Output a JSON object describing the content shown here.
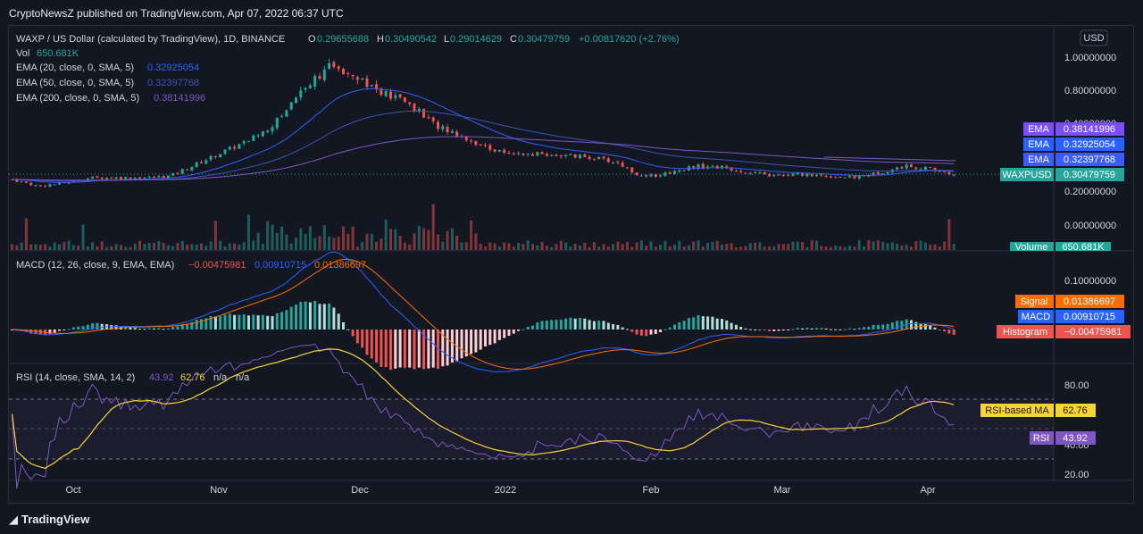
{
  "header": {
    "published": "CryptoNewsZ published on TradingView.com, Apr 07, 2022 06:37 UTC"
  },
  "footer": {
    "logo_text": "TradingView"
  },
  "colors": {
    "background": "#131722",
    "up": "#26a69a",
    "down": "#ef5350",
    "ema20": "#2962ff",
    "ema50": "#3f51b5",
    "ema200": "#7e57c2",
    "macd": "#2962ff",
    "signal": "#ff6d00",
    "rsi": "#7e57c2",
    "rsi_ma": "#f7d336"
  },
  "chart_data": {
    "type": "candlestick",
    "symbol_line": "WAXP / US Dollar (calculated by TradingView), 1D, BINANCE",
    "ohlc": {
      "o_label": "O",
      "o": "0.29655688",
      "h_label": "H",
      "h": "0.30490542",
      "l_label": "L",
      "l": "0.29014629",
      "c_label": "C",
      "c": "0.30479759",
      "change": "+0.00817620 (+2.76%)"
    },
    "vol_line": {
      "label": "Vol",
      "value": "650.681K"
    },
    "ema_lines": [
      {
        "label": "EMA (20, close, 0, SMA, 5)",
        "value": "0.32925054"
      },
      {
        "label": "EMA (50, close, 0, SMA, 5)",
        "value": "0.32397768"
      },
      {
        "label": "EMA (200, close, 0, SMA, 5)",
        "value": "0.38141996"
      }
    ],
    "currency": "USD",
    "x_ticks": [
      "Oct",
      "Nov",
      "Dec",
      "2022",
      "Feb",
      "Mar",
      "Apr"
    ],
    "price_axis": [
      "1.00000000",
      "0.80000000",
      "0.40000000",
      "0.20000000",
      "0.00000000"
    ],
    "price_tags": [
      {
        "name": "EMA",
        "value": "0.38141996"
      },
      {
        "name": "EMA",
        "value": "0.32925054"
      },
      {
        "name": "EMA",
        "value": "0.32397768"
      },
      {
        "name": "WAXPUSD",
        "value": "0.30479759"
      },
      {
        "name": "Volume",
        "value": "650.681K"
      }
    ],
    "price_series": [
      {
        "x": "Sep 17",
        "y": 0.29
      },
      {
        "x": "Sep 24",
        "y": 0.25
      },
      {
        "x": "Oct 01",
        "y": 0.27
      },
      {
        "x": "Oct 08",
        "y": 0.3
      },
      {
        "x": "Oct 15",
        "y": 0.3
      },
      {
        "x": "Oct 22",
        "y": 0.3
      },
      {
        "x": "Oct 29",
        "y": 0.31
      },
      {
        "x": "Nov 03",
        "y": 0.38
      },
      {
        "x": "Nov 08",
        "y": 0.45
      },
      {
        "x": "Nov 13",
        "y": 0.52
      },
      {
        "x": "Nov 17",
        "y": 0.62
      },
      {
        "x": "Nov 20",
        "y": 0.82
      },
      {
        "x": "Nov 23",
        "y": 0.95
      },
      {
        "x": "Nov 26",
        "y": 0.92
      },
      {
        "x": "Nov 29",
        "y": 0.8
      },
      {
        "x": "Dec 02",
        "y": 0.75
      },
      {
        "x": "Dec 05",
        "y": 0.62
      },
      {
        "x": "Dec 09",
        "y": 0.55
      },
      {
        "x": "Dec 13",
        "y": 0.48
      },
      {
        "x": "Dec 20",
        "y": 0.43
      },
      {
        "x": "Dec 27",
        "y": 0.44
      },
      {
        "x": "Jan 01",
        "y": 0.43
      },
      {
        "x": "Jan 08",
        "y": 0.42
      },
      {
        "x": "Jan 15",
        "y": 0.39
      },
      {
        "x": "Jan 22",
        "y": 0.3
      },
      {
        "x": "Jan 29",
        "y": 0.33
      },
      {
        "x": "Feb 05",
        "y": 0.37
      },
      {
        "x": "Feb 12",
        "y": 0.36
      },
      {
        "x": "Feb 19",
        "y": 0.33
      },
      {
        "x": "Feb 26",
        "y": 0.31
      },
      {
        "x": "Mar 05",
        "y": 0.32
      },
      {
        "x": "Mar 12",
        "y": 0.31
      },
      {
        "x": "Mar 19",
        "y": 0.3
      },
      {
        "x": "Mar 26",
        "y": 0.33
      },
      {
        "x": "Apr 01",
        "y": 0.37
      },
      {
        "x": "Apr 04",
        "y": 0.35
      },
      {
        "x": "Apr 07",
        "y": 0.305
      }
    ],
    "macd": {
      "label": "MACD (12, 26, close, 9, EMA, EMA)",
      "values": [
        "−0.00475981",
        "0.00910715",
        "0.01386697"
      ],
      "axis": [
        "0.10000000"
      ],
      "tags": [
        {
          "name": "Signal",
          "value": "0.01386697"
        },
        {
          "name": "MACD",
          "value": "0.00910715"
        },
        {
          "name": "Histogram",
          "value": "−0.00475981"
        }
      ]
    },
    "rsi": {
      "label": "RSI (14, close, SMA, 14, 2)",
      "values": [
        "43.92",
        "62.76",
        "n/a",
        "n/a"
      ],
      "axis": [
        "80.00",
        "40.00",
        "20.00"
      ],
      "tags": [
        {
          "name": "RSI-based MA",
          "value": "62.76"
        },
        {
          "name": "RSI",
          "value": "43.92"
        }
      ]
    }
  }
}
